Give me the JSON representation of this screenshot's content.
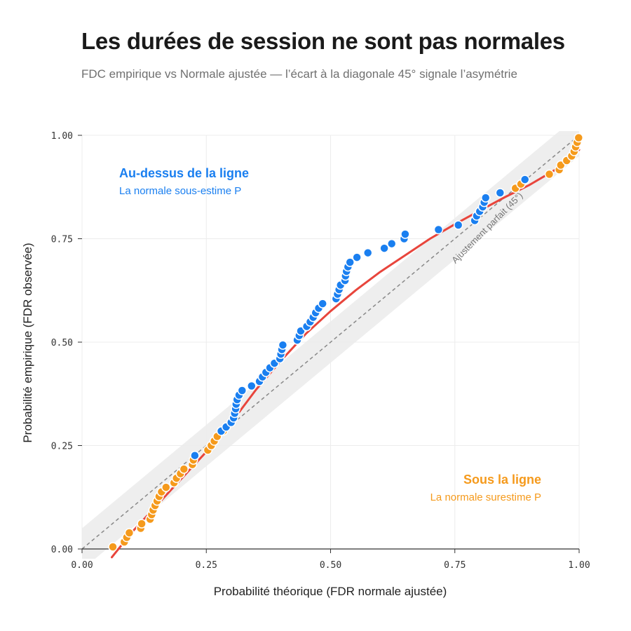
{
  "header": {
    "title": "Les durées de session ne sont pas normales",
    "subtitle": "FDC empirique vs Normale ajustée — l’écart à la diagonale 45° signale l’asymétrie"
  },
  "annotations": {
    "above_title": "Au-dessus de la ligne",
    "above_sub": "La normale sous-estime P",
    "below_title": "Sous la ligne",
    "below_sub": "La normale surestime P",
    "diagonal_label": "Ajustement parfait (45°)"
  },
  "colors": {
    "above": "#1a7ff0",
    "below": "#f59a1c",
    "fit_line": "#e8453c",
    "diagonal": "#888888",
    "band": "#eeeeee",
    "grid": "#ececec"
  },
  "chart_data": {
    "type": "scatter",
    "xlabel": "Probabilité théorique (FDR normale ajustée)",
    "ylabel": "Probabilité empirique (FDR observée)",
    "xlim": [
      0,
      1
    ],
    "ylim": [
      0,
      1
    ],
    "x_ticks": [
      "0.00",
      "0.25",
      "0.50",
      "0.75",
      "1.00"
    ],
    "y_ticks": [
      "0.00",
      "0.25",
      "0.50",
      "0.75",
      "1.00"
    ],
    "grid": true,
    "reference": "diagonal y = x with a shaded ±0.05 band",
    "series": [
      {
        "role": "below",
        "points": [
          [
            0.062,
            0.005
          ],
          [
            0.085,
            0.017
          ],
          [
            0.09,
            0.028
          ],
          [
            0.095,
            0.039
          ],
          [
            0.118,
            0.05
          ],
          [
            0.12,
            0.061
          ],
          [
            0.137,
            0.072
          ],
          [
            0.14,
            0.083
          ],
          [
            0.143,
            0.094
          ],
          [
            0.147,
            0.105
          ],
          [
            0.151,
            0.116
          ],
          [
            0.155,
            0.127
          ],
          [
            0.16,
            0.138
          ],
          [
            0.169,
            0.149
          ],
          [
            0.185,
            0.16
          ],
          [
            0.19,
            0.171
          ],
          [
            0.198,
            0.182
          ],
          [
            0.205,
            0.193
          ],
          [
            0.222,
            0.204
          ],
          [
            0.224,
            0.215
          ],
          [
            0.253,
            0.239
          ],
          [
            0.26,
            0.25
          ],
          [
            0.266,
            0.261
          ],
          [
            0.272,
            0.272
          ],
          [
            0.284,
            0.285
          ],
          [
            0.872,
            0.872
          ],
          [
            0.883,
            0.882
          ],
          [
            0.94,
            0.906
          ],
          [
            0.96,
            0.917
          ],
          [
            0.963,
            0.928
          ],
          [
            0.975,
            0.939
          ],
          [
            0.985,
            0.95
          ],
          [
            0.99,
            0.961
          ],
          [
            0.993,
            0.972
          ],
          [
            0.996,
            0.983
          ],
          [
            0.999,
            0.994
          ]
        ]
      },
      {
        "role": "above",
        "points": [
          [
            0.227,
            0.226
          ],
          [
            0.28,
            0.285
          ],
          [
            0.29,
            0.295
          ],
          [
            0.3,
            0.306
          ],
          [
            0.305,
            0.317
          ],
          [
            0.307,
            0.328
          ],
          [
            0.309,
            0.339
          ],
          [
            0.31,
            0.35
          ],
          [
            0.312,
            0.361
          ],
          [
            0.316,
            0.372
          ],
          [
            0.322,
            0.383
          ],
          [
            0.341,
            0.394
          ],
          [
            0.357,
            0.405
          ],
          [
            0.363,
            0.416
          ],
          [
            0.37,
            0.427
          ],
          [
            0.378,
            0.438
          ],
          [
            0.387,
            0.449
          ],
          [
            0.398,
            0.46
          ],
          [
            0.4,
            0.471
          ],
          [
            0.402,
            0.482
          ],
          [
            0.404,
            0.493
          ],
          [
            0.433,
            0.505
          ],
          [
            0.437,
            0.516
          ],
          [
            0.44,
            0.527
          ],
          [
            0.452,
            0.538
          ],
          [
            0.459,
            0.549
          ],
          [
            0.465,
            0.56
          ],
          [
            0.47,
            0.571
          ],
          [
            0.476,
            0.582
          ],
          [
            0.484,
            0.593
          ],
          [
            0.511,
            0.605
          ],
          [
            0.514,
            0.616
          ],
          [
            0.517,
            0.627
          ],
          [
            0.52,
            0.638
          ],
          [
            0.529,
            0.649
          ],
          [
            0.53,
            0.66
          ],
          [
            0.532,
            0.671
          ],
          [
            0.535,
            0.682
          ],
          [
            0.539,
            0.693
          ],
          [
            0.553,
            0.705
          ],
          [
            0.575,
            0.716
          ],
          [
            0.608,
            0.727
          ],
          [
            0.623,
            0.738
          ],
          [
            0.648,
            0.75
          ],
          [
            0.65,
            0.761
          ],
          [
            0.717,
            0.772
          ],
          [
            0.757,
            0.783
          ],
          [
            0.79,
            0.794
          ],
          [
            0.794,
            0.805
          ],
          [
            0.8,
            0.816
          ],
          [
            0.806,
            0.827
          ],
          [
            0.809,
            0.838
          ],
          [
            0.812,
            0.849
          ],
          [
            0.841,
            0.861
          ],
          [
            0.891,
            0.893
          ]
        ]
      }
    ],
    "fit_curve": [
      [
        0.06,
        -0.02
      ],
      [
        0.1,
        0.04
      ],
      [
        0.15,
        0.105
      ],
      [
        0.2,
        0.17
      ],
      [
        0.25,
        0.235
      ],
      [
        0.3,
        0.305
      ],
      [
        0.35,
        0.385
      ],
      [
        0.4,
        0.455
      ],
      [
        0.45,
        0.52
      ],
      [
        0.5,
        0.575
      ],
      [
        0.55,
        0.625
      ],
      [
        0.6,
        0.67
      ],
      [
        0.65,
        0.71
      ],
      [
        0.7,
        0.75
      ],
      [
        0.75,
        0.785
      ],
      [
        0.8,
        0.818
      ],
      [
        0.85,
        0.85
      ],
      [
        0.9,
        0.88
      ],
      [
        0.95,
        0.915
      ],
      [
        1.0,
        0.965
      ]
    ]
  }
}
